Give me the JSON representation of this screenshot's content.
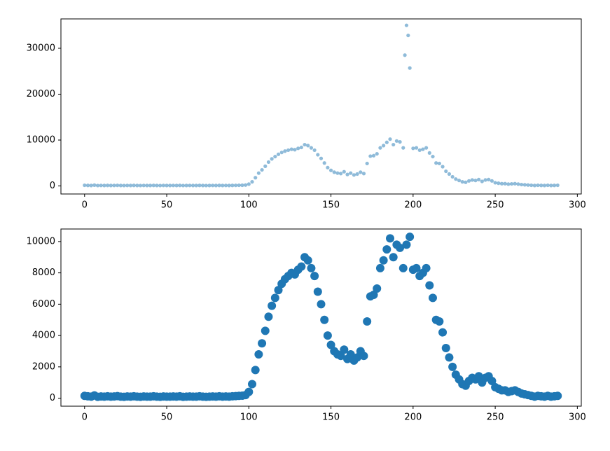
{
  "chart_data": [
    {
      "type": "scatter",
      "color": "#1f77b4",
      "x": [
        0,
        2,
        4,
        6,
        8,
        10,
        12,
        14,
        16,
        18,
        20,
        22,
        24,
        26,
        28,
        30,
        32,
        34,
        36,
        38,
        40,
        42,
        44,
        46,
        48,
        50,
        52,
        54,
        56,
        58,
        60,
        62,
        64,
        66,
        68,
        70,
        72,
        74,
        76,
        78,
        80,
        82,
        84,
        86,
        88,
        90,
        92,
        94,
        96,
        98,
        100,
        102,
        104,
        106,
        108,
        110,
        112,
        114,
        116,
        118,
        120,
        122,
        124,
        126,
        128,
        130,
        132,
        134,
        136,
        138,
        140,
        142,
        144,
        146,
        148,
        150,
        152,
        154,
        156,
        158,
        160,
        162,
        164,
        166,
        168,
        170,
        172,
        174,
        176,
        178,
        180,
        182,
        184,
        186,
        188,
        190,
        192,
        194,
        195,
        196,
        197,
        198,
        200,
        202,
        204,
        206,
        208,
        210,
        212,
        214,
        216,
        218,
        220,
        222,
        224,
        226,
        228,
        230,
        232,
        234,
        236,
        238,
        240,
        242,
        244,
        246,
        248,
        250,
        252,
        254,
        256,
        258,
        260,
        262,
        264,
        266,
        268,
        270,
        272,
        274,
        276,
        278,
        280,
        282,
        284,
        286,
        288
      ],
      "values": [
        150,
        120,
        100,
        180,
        90,
        110,
        100,
        120,
        100,
        110,
        130,
        100,
        90,
        110,
        100,
        120,
        100,
        90,
        110,
        100,
        100,
        120,
        100,
        90,
        110,
        100,
        100,
        110,
        100,
        120,
        90,
        100,
        110,
        100,
        100,
        120,
        100,
        90,
        100,
        110,
        100,
        120,
        100,
        110,
        100,
        120,
        130,
        150,
        160,
        200,
        400,
        900,
        1800,
        2800,
        3500,
        4300,
        5200,
        5900,
        6400,
        6900,
        7300,
        7600,
        7800,
        8000,
        7900,
        8200,
        8400,
        9000,
        8800,
        8300,
        7800,
        6800,
        6000,
        5000,
        4000,
        3400,
        3000,
        2800,
        2700,
        3100,
        2500,
        2800,
        2400,
        2600,
        3000,
        2700,
        4900,
        6500,
        6600,
        7000,
        8300,
        8800,
        9500,
        10200,
        9000,
        9800,
        9600,
        8300,
        28500,
        35000,
        32800,
        25700,
        8200,
        8300,
        7800,
        8000,
        8300,
        7200,
        6400,
        5000,
        4900,
        4200,
        3200,
        2600,
        2000,
        1500,
        1200,
        900,
        800,
        1100,
        1300,
        1200,
        1400,
        1000,
        1300,
        1400,
        1100,
        700,
        600,
        500,
        500,
        400,
        450,
        500,
        400,
        300,
        250,
        200,
        150,
        100,
        150,
        120,
        100,
        150,
        100,
        120,
        150
      ],
      "xlim": [
        -14.4,
        302.4
      ],
      "xticks": [
        0,
        50,
        100,
        150,
        200,
        250,
        300
      ],
      "ylim": [
        -1750,
        36400
      ],
      "yticks": [
        0,
        10000,
        20000,
        30000
      ]
    },
    {
      "type": "scatter",
      "color": "#1f77b4",
      "x": [
        0,
        2,
        4,
        6,
        8,
        10,
        12,
        14,
        16,
        18,
        20,
        22,
        24,
        26,
        28,
        30,
        32,
        34,
        36,
        38,
        40,
        42,
        44,
        46,
        48,
        50,
        52,
        54,
        56,
        58,
        60,
        62,
        64,
        66,
        68,
        70,
        72,
        74,
        76,
        78,
        80,
        82,
        84,
        86,
        88,
        90,
        92,
        94,
        96,
        98,
        100,
        102,
        104,
        106,
        108,
        110,
        112,
        114,
        116,
        118,
        120,
        122,
        124,
        126,
        128,
        130,
        132,
        134,
        136,
        138,
        140,
        142,
        144,
        146,
        148,
        150,
        152,
        154,
        156,
        158,
        160,
        162,
        164,
        166,
        168,
        170,
        172,
        174,
        176,
        178,
        180,
        182,
        184,
        186,
        188,
        190,
        192,
        194,
        196,
        198,
        200,
        202,
        204,
        206,
        208,
        210,
        212,
        214,
        216,
        218,
        220,
        222,
        224,
        226,
        228,
        230,
        232,
        234,
        236,
        238,
        240,
        242,
        244,
        246,
        248,
        250,
        252,
        254,
        256,
        258,
        260,
        262,
        264,
        266,
        268,
        270,
        272,
        274,
        276,
        278,
        280,
        282,
        284,
        286,
        288
      ],
      "values": [
        150,
        120,
        100,
        180,
        90,
        110,
        100,
        120,
        100,
        110,
        130,
        100,
        90,
        110,
        100,
        120,
        100,
        90,
        110,
        100,
        100,
        120,
        100,
        90,
        110,
        100,
        100,
        110,
        100,
        120,
        90,
        100,
        110,
        100,
        100,
        120,
        100,
        90,
        100,
        110,
        100,
        120,
        100,
        110,
        100,
        120,
        130,
        150,
        160,
        200,
        400,
        900,
        1800,
        2800,
        3500,
        4300,
        5200,
        5900,
        6400,
        6900,
        7300,
        7600,
        7800,
        8000,
        7900,
        8200,
        8400,
        9000,
        8800,
        8300,
        7800,
        6800,
        6000,
        5000,
        4000,
        3400,
        3000,
        2800,
        2700,
        3100,
        2500,
        2800,
        2400,
        2600,
        3000,
        2700,
        4900,
        6500,
        6600,
        7000,
        8300,
        8800,
        9500,
        10200,
        9000,
        9800,
        9600,
        8300,
        9800,
        10300,
        8200,
        8300,
        7800,
        8000,
        8300,
        7200,
        6400,
        5000,
        4900,
        4200,
        3200,
        2600,
        2000,
        1500,
        1200,
        900,
        800,
        1100,
        1300,
        1200,
        1400,
        1000,
        1300,
        1400,
        1100,
        700,
        600,
        500,
        500,
        400,
        450,
        500,
        400,
        300,
        250,
        200,
        150,
        100,
        150,
        120,
        100,
        150,
        100,
        120,
        150
      ],
      "xlim": [
        -14.4,
        302.4
      ],
      "xticks": [
        0,
        50,
        100,
        150,
        200,
        250,
        300
      ],
      "ylim": [
        -510,
        10800
      ],
      "yticks": [
        0,
        2000,
        4000,
        6000,
        8000,
        10000
      ]
    }
  ]
}
